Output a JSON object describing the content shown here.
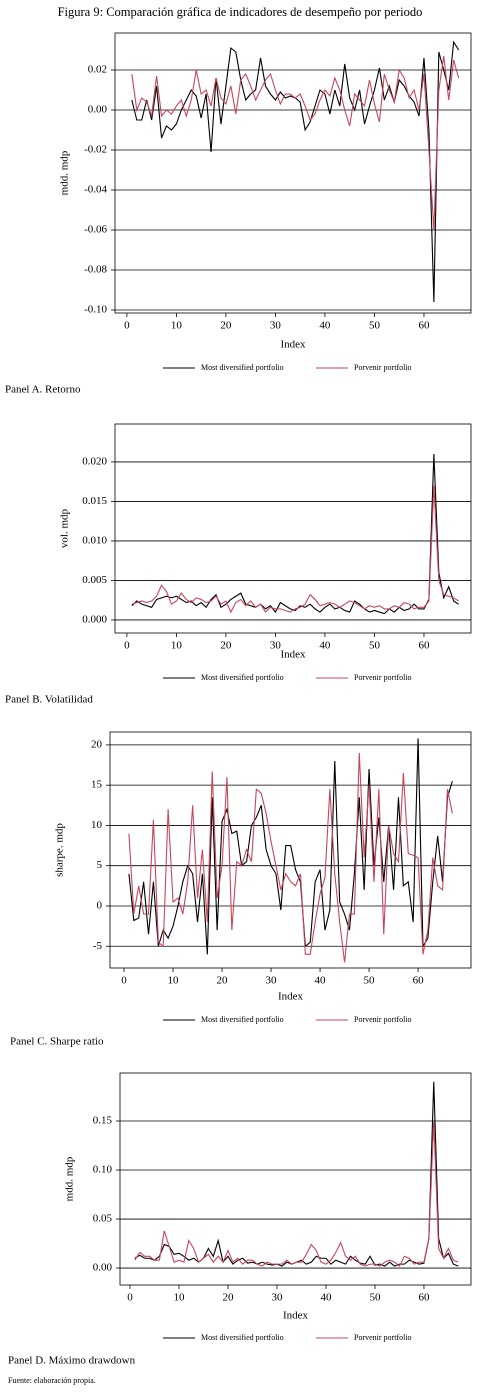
{
  "title": "Figura 9: Comparación gráfica de indicadores de desempeño por periodo",
  "source": "Fuente: elaboración propia.",
  "chart_data": [
    {
      "type": "line",
      "caption": "Panel A. Retorno",
      "x_label": "Index",
      "y_label": "mdd. mdp",
      "grid": true,
      "xlim": [
        -2.4,
        69.5
      ],
      "xticks": [
        0,
        10,
        20,
        30,
        40,
        50,
        60
      ],
      "ylim": [
        -0.1015,
        0.0385
      ],
      "yticks": [
        {
          "value": -0.1,
          "label": "-0.10"
        },
        {
          "value": -0.08,
          "label": "-0.08"
        },
        {
          "value": -0.06,
          "label": "-0.06"
        },
        {
          "value": -0.04,
          "label": "-0.04"
        },
        {
          "value": -0.02,
          "label": "-0.02"
        },
        {
          "value": 0,
          "label": "0.00"
        },
        0.02
      ],
      "x": [
        1,
        2,
        3,
        4,
        5,
        6,
        7,
        8,
        9,
        10,
        11,
        12,
        13,
        14,
        15,
        16,
        17,
        18,
        19,
        20,
        21,
        22,
        23,
        24,
        25,
        26,
        27,
        28,
        29,
        30,
        31,
        32,
        33,
        34,
        35,
        36,
        37,
        38,
        39,
        40,
        41,
        42,
        43,
        44,
        45,
        46,
        47,
        48,
        49,
        50,
        51,
        52,
        53,
        54,
        55,
        56,
        57,
        58,
        59,
        60,
        61,
        62,
        63,
        64,
        65,
        66,
        67
      ],
      "series": [
        {
          "name": "Most diversified portfolio",
          "color": "#000000",
          "values": [
            0.005,
            -0.005,
            -0.005,
            0.005,
            -0.005,
            0.012,
            -0.014,
            -0.008,
            -0.01,
            -0.007,
            0.0,
            0.005,
            0.01,
            0.007,
            -0.004,
            0.008,
            -0.021,
            0.016,
            -0.007,
            0.012,
            0.031,
            0.029,
            0.015,
            0.005,
            0.008,
            0.01,
            0.026,
            0.012,
            0.008,
            0.005,
            0.009,
            0.006,
            0.007,
            0.006,
            0.004,
            -0.01,
            -0.006,
            0.002,
            0.01,
            0.008,
            -0.002,
            0.01,
            0.002,
            0.023,
            0.006,
            0.0,
            0.01,
            -0.007,
            0.002,
            0.01,
            0.021,
            0.005,
            0.012,
            0.004,
            0.015,
            0.012,
            0.007,
            0.004,
            -0.003,
            0.026,
            -0.01,
            -0.096,
            0.029,
            0.02,
            0.01,
            0.034,
            0.03
          ]
        },
        {
          "name": "Porvenir portfolio",
          "color": "#c8465a",
          "values": [
            0.018,
            0.0,
            0.006,
            0.004,
            -0.003,
            0.017,
            -0.003,
            0.0,
            -0.002,
            0.002,
            0.005,
            -0.003,
            0.005,
            0.02,
            0.008,
            0.01,
            0.002,
            0.016,
            0.006,
            0.003,
            0.012,
            -0.002,
            0.015,
            0.018,
            0.012,
            0.005,
            0.01,
            0.015,
            0.018,
            0.01,
            0.003,
            0.008,
            0.008,
            0.006,
            0.008,
            0.002,
            -0.005,
            -0.002,
            0.005,
            0.01,
            0.007,
            0.016,
            0.01,
            0.0,
            -0.008,
            0.008,
            0.005,
            0.002,
            0.015,
            0.003,
            -0.006,
            0.018,
            0.01,
            0.004,
            0.02,
            0.016,
            0.006,
            0.01,
            0.0,
            0.018,
            -0.02,
            -0.06,
            0.01,
            0.027,
            0.005,
            0.025,
            0.016
          ]
        }
      ]
    },
    {
      "type": "line",
      "caption": "Panel B. Volatilidad",
      "x_label": "Index",
      "y_label": "vol. mdp",
      "grid": true,
      "xlim": [
        -2.4,
        69.5
      ],
      "xticks": [
        0,
        10,
        20,
        30,
        40,
        50,
        60
      ],
      "ylim": [
        -0.00165,
        0.0248
      ],
      "yticks": [
        {
          "value": 0,
          "label": "0.000"
        },
        0.005,
        {
          "value": 0.01,
          "label": "0.010"
        },
        0.015,
        {
          "value": 0.02,
          "label": "0.020"
        }
      ],
      "x": [
        1,
        2,
        3,
        4,
        5,
        6,
        7,
        8,
        9,
        10,
        11,
        12,
        13,
        14,
        15,
        16,
        17,
        18,
        19,
        20,
        21,
        22,
        23,
        24,
        25,
        26,
        27,
        28,
        29,
        30,
        31,
        32,
        33,
        34,
        35,
        36,
        37,
        38,
        39,
        40,
        41,
        42,
        43,
        44,
        45,
        46,
        47,
        48,
        49,
        50,
        51,
        52,
        53,
        54,
        55,
        56,
        57,
        58,
        59,
        60,
        61,
        62,
        63,
        64,
        65,
        66,
        67
      ],
      "series": [
        {
          "name": "Most diversified portfolio",
          "color": "#000000",
          "values": [
            0.0018,
            0.0024,
            0.002,
            0.0018,
            0.0016,
            0.0026,
            0.0028,
            0.003,
            0.0028,
            0.003,
            0.0026,
            0.0022,
            0.0024,
            0.0018,
            0.0022,
            0.0016,
            0.0026,
            0.0032,
            0.0016,
            0.002,
            0.0026,
            0.003,
            0.0034,
            0.002,
            0.0018,
            0.0016,
            0.002,
            0.0014,
            0.0018,
            0.001,
            0.0022,
            0.0018,
            0.0014,
            0.0012,
            0.0018,
            0.0016,
            0.002,
            0.0014,
            0.001,
            0.0016,
            0.002,
            0.0014,
            0.0016,
            0.0012,
            0.001,
            0.0024,
            0.002,
            0.0014,
            0.001,
            0.0012,
            0.001,
            0.0008,
            0.0014,
            0.001,
            0.0016,
            0.0012,
            0.0014,
            0.002,
            0.0014,
            0.0014,
            0.0026,
            0.021,
            0.006,
            0.0028,
            0.0042,
            0.0024,
            0.002
          ]
        },
        {
          "name": "Porvenir portfolio",
          "color": "#c8465a",
          "values": [
            0.002,
            0.0022,
            0.0024,
            0.0022,
            0.0024,
            0.003,
            0.0044,
            0.0036,
            0.002,
            0.0024,
            0.0034,
            0.0026,
            0.0022,
            0.0028,
            0.0026,
            0.0022,
            0.0024,
            0.003,
            0.002,
            0.0024,
            0.001,
            0.0022,
            0.0026,
            0.0018,
            0.0024,
            0.0016,
            0.002,
            0.001,
            0.0016,
            0.0014,
            0.0014,
            0.0012,
            0.001,
            0.0014,
            0.0016,
            0.002,
            0.0032,
            0.0026,
            0.0018,
            0.002,
            0.0022,
            0.002,
            0.0016,
            0.002,
            0.0024,
            0.0022,
            0.0018,
            0.0014,
            0.0018,
            0.0016,
            0.0018,
            0.0014,
            0.0014,
            0.0018,
            0.0016,
            0.0022,
            0.002,
            0.0014,
            0.0016,
            0.0016,
            0.0024,
            0.017,
            0.005,
            0.0032,
            0.003,
            0.0028,
            0.0024
          ]
        }
      ]
    },
    {
      "type": "line",
      "caption": "Panel C. Sharpe ratio",
      "x_label": "Index",
      "y_label": "sharpe. mdp",
      "grid": true,
      "xlim": [
        -2.86,
        70.8
      ],
      "xticks": [
        0,
        10,
        20,
        30,
        40,
        50,
        60
      ],
      "ylim": [
        -7.7,
        21.6
      ],
      "yticks": [
        -5,
        0,
        5,
        10,
        15,
        20
      ],
      "x": [
        1,
        2,
        3,
        4,
        5,
        6,
        7,
        8,
        9,
        10,
        11,
        12,
        13,
        14,
        15,
        16,
        17,
        18,
        19,
        20,
        21,
        22,
        23,
        24,
        25,
        26,
        27,
        28,
        29,
        30,
        31,
        32,
        33,
        34,
        35,
        36,
        37,
        38,
        39,
        40,
        41,
        42,
        43,
        44,
        45,
        46,
        47,
        48,
        49,
        50,
        51,
        52,
        53,
        54,
        55,
        56,
        57,
        58,
        59,
        60,
        61,
        62,
        63,
        64,
        65,
        66,
        67
      ],
      "series": [
        {
          "name": "Most diversified portfolio",
          "color": "#000000",
          "values": [
            4,
            -1.8,
            -1.5,
            3,
            -3.5,
            3,
            -5,
            -3,
            -4,
            -2.5,
            0,
            3,
            5,
            4,
            -2,
            4,
            -6,
            13.5,
            -3,
            10.5,
            12,
            9,
            9.3,
            5,
            5.5,
            10,
            11,
            12.5,
            7,
            5,
            4,
            -0.5,
            7.5,
            7.5,
            4.5,
            3,
            -5,
            -4.5,
            3,
            4.5,
            -3,
            -0.5,
            18,
            0.5,
            -1,
            -3,
            4,
            13.5,
            2,
            17,
            5,
            11,
            3,
            10,
            2,
            13.5,
            2.5,
            3,
            -2,
            20.8,
            -5,
            -4,
            3,
            8.7,
            3,
            13.5,
            15.5
          ]
        },
        {
          "name": "Porvenir portfolio",
          "color": "#c8465a",
          "values": [
            9,
            -1,
            2.5,
            -1,
            -1,
            10.7,
            -4.5,
            -5,
            12,
            0.5,
            1,
            -1,
            3,
            12.5,
            1,
            7,
            -2,
            16.7,
            1,
            5,
            16,
            -3,
            5.5,
            5,
            7,
            5.5,
            14.5,
            14,
            11.5,
            8,
            5,
            2,
            4,
            3,
            2.5,
            4,
            -6,
            -6,
            -2,
            1.5,
            3.5,
            14.5,
            4,
            -2,
            -7,
            -1,
            -1,
            19,
            6,
            15,
            3,
            14.5,
            -3.5,
            10,
            6.5,
            5.5,
            16.5,
            6.5,
            6.3,
            6,
            -6,
            -3,
            6,
            2.5,
            2,
            14.5,
            11.5
          ]
        }
      ]
    },
    {
      "type": "line",
      "caption": "Panel D. Máximo drawdown",
      "x_label": "Index",
      "y_label": "mdd. mdp",
      "grid": true,
      "xlim": [
        -2.04,
        69.6
      ],
      "xticks": [
        0,
        10,
        20,
        30,
        40,
        50,
        60
      ],
      "ylim": [
        -0.0173,
        0.199
      ],
      "yticks": [
        {
          "value": 0,
          "label": "0.00"
        },
        0.05,
        {
          "value": 0.1,
          "label": "0.10"
        },
        0.15
      ],
      "x": [
        1,
        2,
        3,
        4,
        5,
        6,
        7,
        8,
        9,
        10,
        11,
        12,
        13,
        14,
        15,
        16,
        17,
        18,
        19,
        20,
        21,
        22,
        23,
        24,
        25,
        26,
        27,
        28,
        29,
        30,
        31,
        32,
        33,
        34,
        35,
        36,
        37,
        38,
        39,
        40,
        41,
        42,
        43,
        44,
        45,
        46,
        47,
        48,
        49,
        50,
        51,
        52,
        53,
        54,
        55,
        56,
        57,
        58,
        59,
        60,
        61,
        62,
        63,
        64,
        65,
        66,
        67
      ],
      "series": [
        {
          "name": "Most diversified portfolio",
          "color": "#000000",
          "values": [
            0.01,
            0.013,
            0.01,
            0.01,
            0.008,
            0.012,
            0.024,
            0.022,
            0.014,
            0.015,
            0.012,
            0.008,
            0.01,
            0.006,
            0.01,
            0.02,
            0.012,
            0.028,
            0.006,
            0.012,
            0.004,
            0.008,
            0.01,
            0.005,
            0.006,
            0.004,
            0.006,
            0.004,
            0.003,
            0.004,
            0.002,
            0.006,
            0.004,
            0.006,
            0.008,
            0.004,
            0.006,
            0.012,
            0.01,
            0.01,
            0.004,
            0.008,
            0.006,
            0.004,
            0.012,
            0.008,
            0.005,
            0.004,
            0.012,
            0.003,
            0.004,
            0.002,
            0.006,
            0.002,
            0.004,
            0.004,
            0.008,
            0.006,
            0.004,
            0.005,
            0.03,
            0.19,
            0.03,
            0.01,
            0.015,
            0.004,
            0.002
          ]
        },
        {
          "name": "Porvenir portfolio",
          "color": "#c8465a",
          "values": [
            0.008,
            0.016,
            0.012,
            0.012,
            0.008,
            0.008,
            0.038,
            0.022,
            0.006,
            0.008,
            0.006,
            0.028,
            0.02,
            0.006,
            0.01,
            0.014,
            0.006,
            0.012,
            0.006,
            0.018,
            0.006,
            0.01,
            0.004,
            0.008,
            0.008,
            0.004,
            0.002,
            0.006,
            0.004,
            0.004,
            0.004,
            0.008,
            0.004,
            0.006,
            0.006,
            0.014,
            0.024,
            0.018,
            0.006,
            0.004,
            0.008,
            0.016,
            0.026,
            0.012,
            0.008,
            0.012,
            0.004,
            0.002,
            0.004,
            0.004,
            0.002,
            0.006,
            0.008,
            0.006,
            0.002,
            0.012,
            0.01,
            0.004,
            0.006,
            0.006,
            0.03,
            0.15,
            0.02,
            0.01,
            0.02,
            0.008,
            0.006
          ]
        }
      ]
    }
  ]
}
